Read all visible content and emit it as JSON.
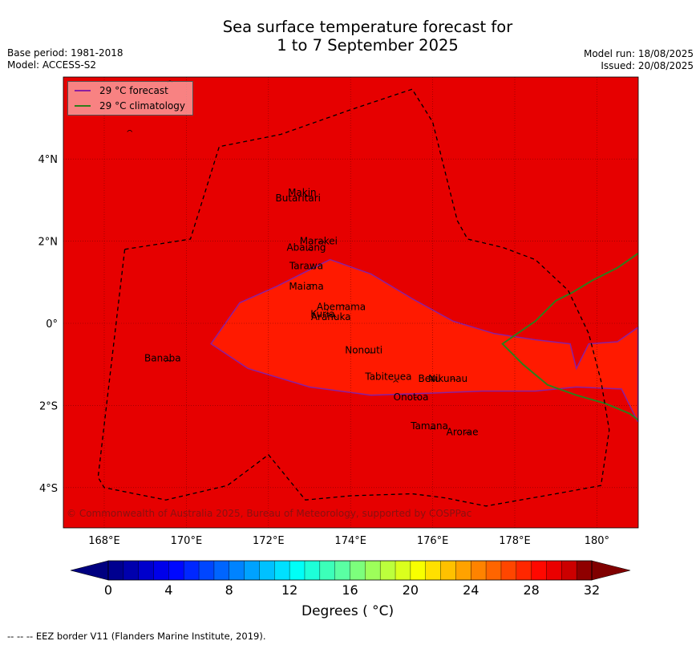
{
  "title": {
    "line1": "Sea surface temperature forecast for",
    "line2": "1 to 7 September 2025"
  },
  "meta": {
    "base_period": "Base period: 1981-2018",
    "model": "Model: ACCESS-S2",
    "model_run": "Model run: 18/08/2025",
    "issued": "Issued: 20/08/2025"
  },
  "legend": [
    {
      "label": "29 °C  forecast",
      "color": "#8b1fa0"
    },
    {
      "label": "29 °C  climatology",
      "color": "#2e7d1b"
    }
  ],
  "map": {
    "lon_range": [
      167,
      181
    ],
    "lat_range": [
      -5,
      6
    ],
    "background_color": "#e60000",
    "anomaly_color": "#ff1a00",
    "x_ticks": [
      {
        "value": 168,
        "label": "168°E"
      },
      {
        "value": 170,
        "label": "170°E"
      },
      {
        "value": 172,
        "label": "172°E"
      },
      {
        "value": 174,
        "label": "174°E"
      },
      {
        "value": 176,
        "label": "176°E"
      },
      {
        "value": 178,
        "label": "178°E"
      },
      {
        "value": 180,
        "label": "180°"
      }
    ],
    "y_ticks": [
      {
        "value": 4,
        "label": "4°N"
      },
      {
        "value": 2,
        "label": "2°N"
      },
      {
        "value": 0,
        "label": "0°"
      },
      {
        "value": -2,
        "label": "2°S"
      },
      {
        "value": -4,
        "label": "4°S"
      }
    ],
    "places": [
      {
        "name": "Makin",
        "lon": 172.9,
        "lat": 3.18
      },
      {
        "name": "Butaritari",
        "lon": 172.8,
        "lat": 3.05
      },
      {
        "name": "Marakei",
        "lon": 173.3,
        "lat": 2.0
      },
      {
        "name": "Abaiang",
        "lon": 173.0,
        "lat": 1.85
      },
      {
        "name": "Tarawa",
        "lon": 173.0,
        "lat": 1.4
      },
      {
        "name": "Maiana",
        "lon": 173.0,
        "lat": 0.9
      },
      {
        "name": "Abemama",
        "lon": 173.85,
        "lat": 0.4
      },
      {
        "name": "Kuria",
        "lon": 173.4,
        "lat": 0.22
      },
      {
        "name": "Aranuka",
        "lon": 173.6,
        "lat": 0.16
      },
      {
        "name": "Nonouti",
        "lon": 174.4,
        "lat": -0.65
      },
      {
        "name": "Banaba",
        "lon": 169.5,
        "lat": -0.85
      },
      {
        "name": "Beru",
        "lon": 176.0,
        "lat": -1.35
      },
      {
        "name": "Tabiteuea",
        "lon": 175.0,
        "lat": -1.3
      },
      {
        "name": "Nikunau",
        "lon": 176.45,
        "lat": -1.35
      },
      {
        "name": "Onotoa",
        "lon": 175.55,
        "lat": -1.8
      },
      {
        "name": "Tamana",
        "lon": 176.0,
        "lat": -2.5
      },
      {
        "name": "Arorae",
        "lon": 176.8,
        "lat": -2.65
      }
    ],
    "copyright": "© Commonwealth of Australia 2025, Bureau of Meteorology, supported by COSPPac"
  },
  "colorbar": {
    "min": 0,
    "max": 32,
    "tick_values": [
      0,
      4,
      8,
      12,
      16,
      20,
      24,
      28,
      32
    ],
    "tick_labels": [
      "0",
      "4",
      "8",
      "12",
      "16",
      "20",
      "24",
      "28",
      "32"
    ],
    "colors": [
      "#00008f",
      "#0000ad",
      "#0000cc",
      "#0000ea",
      "#0008ff",
      "#0027ff",
      "#0046ff",
      "#0065ff",
      "#0083ff",
      "#00a2ff",
      "#00c1ff",
      "#00e0ff",
      "#00fff7",
      "#1dffd8",
      "#3cffb9",
      "#5affa3",
      "#7cff7c",
      "#9dff5a",
      "#bcff3c",
      "#daff1d",
      "#f8ff00",
      "#ffe000",
      "#ffc100",
      "#ffa200",
      "#ff8300",
      "#ff6500",
      "#ff4600",
      "#ff2700",
      "#ff0800",
      "#ea0000",
      "#cc0000",
      "#8f0000"
    ],
    "low_extend_color": "#000080",
    "high_extend_color": "#800000",
    "label": "Degrees ( °C)"
  },
  "footnote": "--  --  -- EEZ border V11 (Flanders Marine Institute, 2019)."
}
